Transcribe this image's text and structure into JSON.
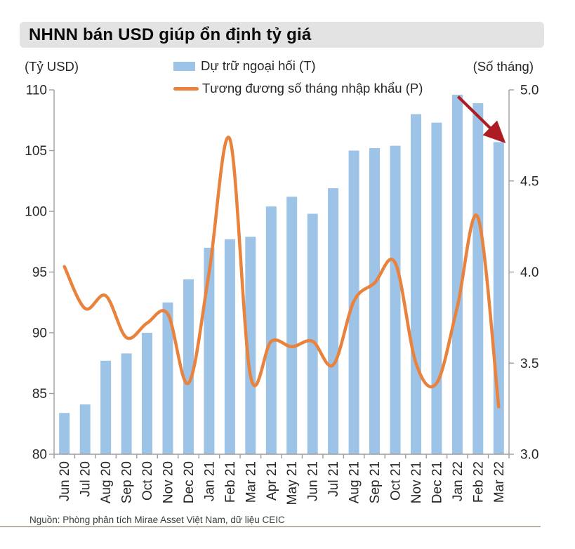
{
  "header": {
    "title": "NHNN bán USD giúp ổn định tỷ giá",
    "left_axis_unit": "(Tỷ USD)",
    "right_axis_unit": "(Số tháng)"
  },
  "legend": [
    {
      "label": "Dự trữ ngoại hối (T)",
      "type": "bar",
      "color": "#9DC3E6"
    },
    {
      "label": "Tương đương số tháng nhập khẩu (P)",
      "type": "line",
      "color": "#E8823C"
    }
  ],
  "chart_data": {
    "type": "bar+line",
    "categories": [
      "Jun 20",
      "Jul 20",
      "Aug 20",
      "Sep 20",
      "Oct 20",
      "Nov 20",
      "Dec 20",
      "Jan 21",
      "Feb 21",
      "Mar 21",
      "Apr 21",
      "May 21",
      "Jun 21",
      "Jul 21",
      "Aug 21",
      "Sep 21",
      "Oct 21",
      "Nov 21",
      "Dec 21",
      "Jan 22",
      "Feb 22",
      "Mar 22"
    ],
    "series": [
      {
        "name": "Dự trữ ngoại hối (T)",
        "type": "bar",
        "axis": "left",
        "color": "#9DC3E6",
        "values": [
          83.4,
          84.1,
          87.7,
          88.3,
          90.0,
          92.5,
          94.4,
          97.0,
          97.7,
          97.9,
          100.4,
          101.2,
          99.8,
          101.9,
          105.0,
          105.2,
          105.4,
          108.0,
          107.3,
          109.6,
          108.9,
          105.7
        ]
      },
      {
        "name": "Tương đương số tháng nhập khẩu (P)",
        "type": "line",
        "axis": "right",
        "color": "#E8823C",
        "values": [
          4.03,
          3.8,
          3.87,
          3.64,
          3.72,
          3.77,
          3.39,
          4.0,
          4.73,
          3.43,
          3.62,
          3.59,
          3.62,
          3.49,
          3.84,
          3.94,
          4.05,
          3.5,
          3.39,
          3.81,
          4.3,
          3.26
        ]
      }
    ],
    "left_axis": {
      "min": 80,
      "max": 110,
      "ticks": [
        110,
        105,
        100,
        95,
        90,
        85,
        80
      ]
    },
    "right_axis": {
      "min": 3.0,
      "max": 5.0,
      "ticks": [
        "5.0",
        "4.5",
        "4.0",
        "3.5",
        "3.0"
      ]
    },
    "grid": false,
    "legend_position": "top",
    "annotation": {
      "type": "arrow",
      "color": "#AE1C23",
      "from_index": 19,
      "from_value": 109.45,
      "to_index": 21,
      "to_value": 105.95
    }
  },
  "style_colors": {
    "axis_line": "#9E9E9E",
    "tick_text": "#262626",
    "title_band_bg": "#E3E3E3"
  },
  "footer": {
    "source": "Nguồn: Phòng phân tích Mirae Asset Việt Nam, dữ liệu CEIC"
  }
}
